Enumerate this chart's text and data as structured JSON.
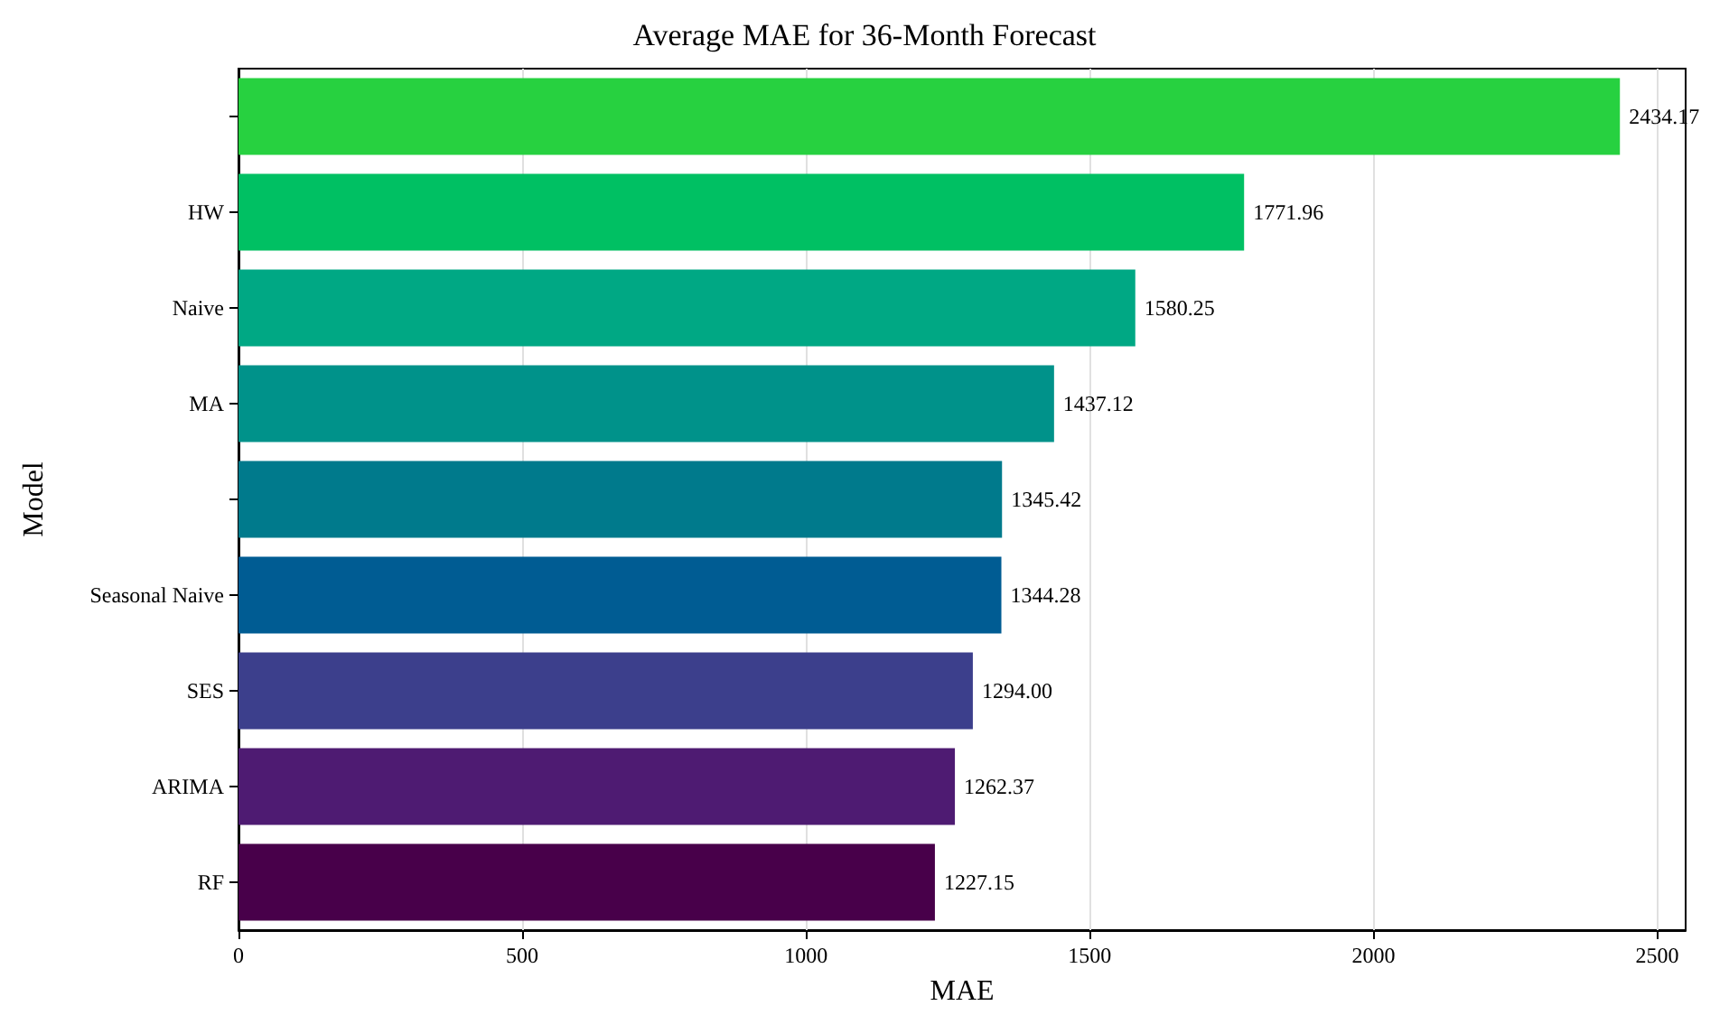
{
  "chart_data": {
    "type": "bar",
    "orientation": "horizontal",
    "title": "Average MAE for 36-Month Forecast",
    "xlabel": "MAE",
    "ylabel": "Model",
    "categories": [
      null,
      "HW",
      "Naive",
      "MA",
      null,
      "Seasonal Naive",
      "SES",
      "ARIMA",
      "RF"
    ],
    "values": [
      2434.17,
      1771.96,
      1580.25,
      1437.12,
      1345.42,
      1344.28,
      1294.0,
      1262.37,
      1227.15
    ],
    "value_labels": [
      "2434.17",
      "1771.96",
      "1580.25",
      "1437.12",
      "1345.42",
      "1344.28",
      "1294.00",
      "1262.37",
      "1227.15"
    ],
    "colors": [
      "#27d140",
      "#00c063",
      "#00a884",
      "#00928a",
      "#007a8c",
      "#005c93",
      "#3c3f8c",
      "#4e1b72",
      "#48004a"
    ],
    "xlim": [
      0,
      2550
    ],
    "xticks": [
      0,
      500,
      1000,
      1500,
      2000,
      2500
    ],
    "grid": "x"
  }
}
